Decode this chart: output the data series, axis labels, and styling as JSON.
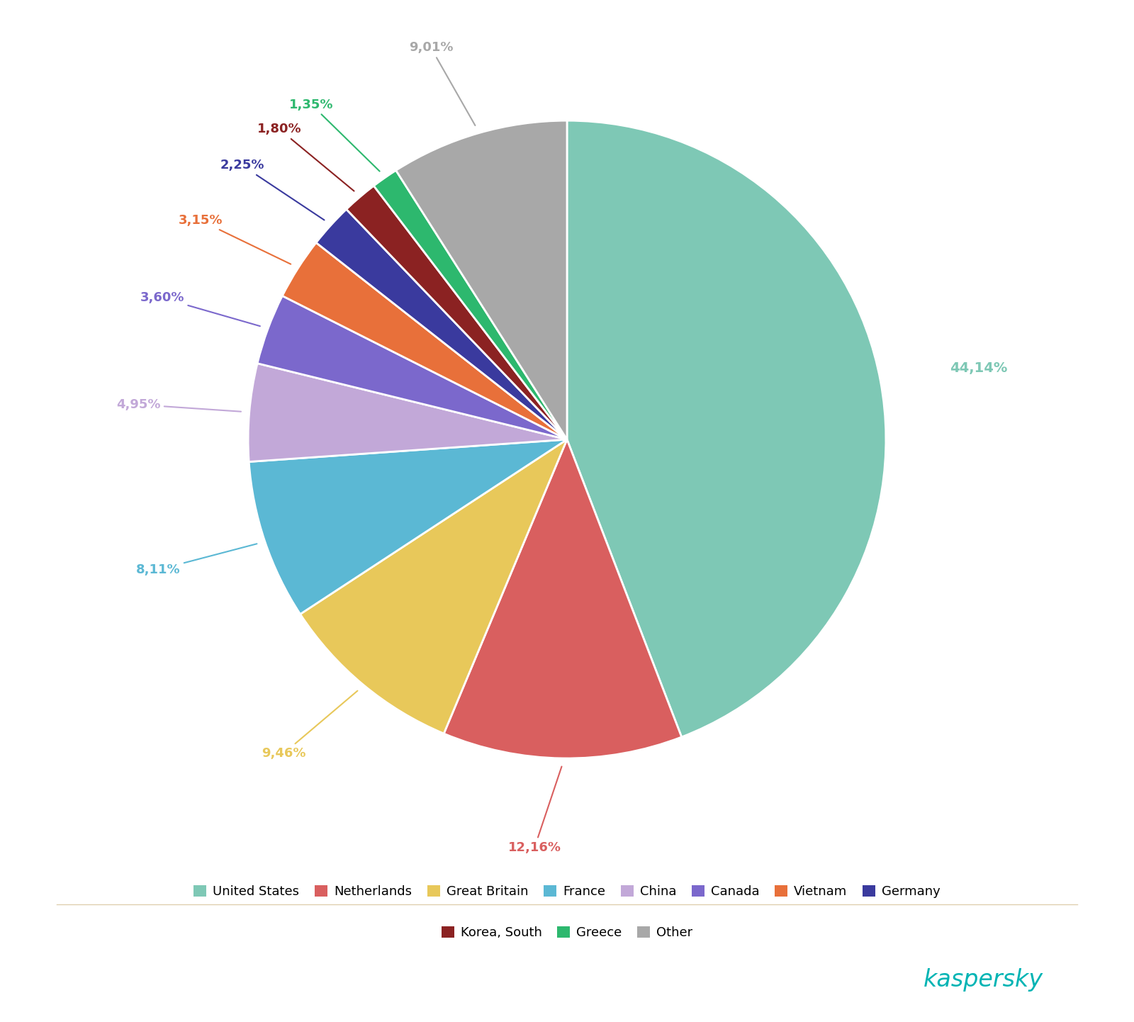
{
  "labels": [
    "United States",
    "Netherlands",
    "Great Britain",
    "France",
    "China",
    "Canada",
    "Vietnam",
    "Germany",
    "Korea, South",
    "Greece",
    "Other"
  ],
  "values": [
    44.14,
    12.16,
    9.46,
    8.11,
    4.95,
    3.6,
    3.15,
    2.25,
    1.8,
    1.35,
    9.01
  ],
  "colors": [
    "#7ec8b5",
    "#d95f5f",
    "#e8c85a",
    "#5bb8d4",
    "#c2a8d8",
    "#7b68cc",
    "#e8703a",
    "#3a3a9e",
    "#8b2222",
    "#2db86e",
    "#a8a8a8"
  ],
  "pct_labels": [
    "44,14%",
    "12,16%",
    "9,46%",
    "8,11%",
    "4,95%",
    "3,60%",
    "3,15%",
    "2,25%",
    "1,80%",
    "1,35%",
    "9,01%"
  ],
  "pct_colors": [
    "#7ec8b5",
    "#d95f5f",
    "#e8c85a",
    "#5bb8d4",
    "#c2a8d8",
    "#7b68cc",
    "#e8703a",
    "#3a3a9e",
    "#8b2222",
    "#2db86e",
    "#a8a8a8"
  ],
  "background_color": "#ffffff",
  "legend_row1": [
    "United States",
    "Netherlands",
    "Great Britain",
    "France",
    "China",
    "Canada",
    "Vietnam",
    "Germany"
  ],
  "legend_row2": [
    "Korea, South",
    "Greece",
    "Other"
  ],
  "kaspersky_color": "#00b4b4",
  "separator_color": "#e0d0b0"
}
